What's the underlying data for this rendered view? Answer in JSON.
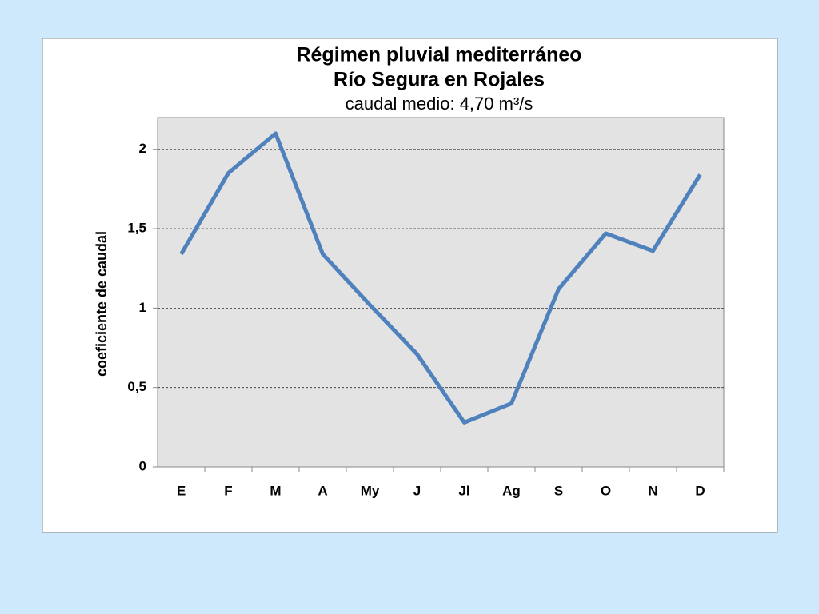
{
  "chart_data": {
    "type": "line",
    "title": "Régimen pluvial mediterráneo",
    "subtitle": "Río Segura en Rojales",
    "annotation": "caudal medio: 4,70 m³/s",
    "y_label": "coeficiente de caudal",
    "categories": [
      "E",
      "F",
      "M",
      "A",
      "My",
      "J",
      "Jl",
      "Ag",
      "S",
      "O",
      "N",
      "D"
    ],
    "series": [
      {
        "color": "#4f81bd",
        "values": [
          1.34,
          1.85,
          2.1,
          1.34,
          1.02,
          0.71,
          0.28,
          0.4,
          1.12,
          1.47,
          1.36,
          1.84
        ]
      }
    ],
    "ylim": [
      0,
      2.2
    ],
    "yticks": [
      0,
      {
        "value": 0.5,
        "label": "0,5"
      },
      1,
      {
        "value": 1.5,
        "label": "1,5"
      },
      2
    ],
    "grid": true
  }
}
